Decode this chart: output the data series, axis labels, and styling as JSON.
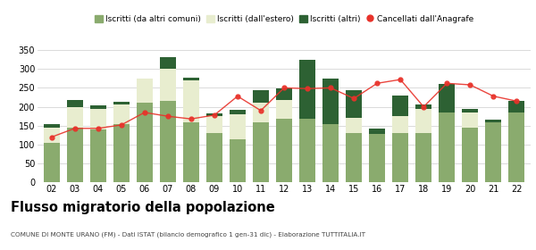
{
  "years": [
    "02",
    "03",
    "04",
    "05",
    "06",
    "07",
    "08",
    "09",
    "10",
    "11",
    "12",
    "13",
    "14",
    "15",
    "16",
    "17",
    "18",
    "19",
    "20",
    "21",
    "22"
  ],
  "iscritti_comuni": [
    105,
    145,
    140,
    155,
    210,
    215,
    160,
    130,
    115,
    160,
    168,
    168,
    155,
    130,
    128,
    130,
    130,
    185,
    145,
    158,
    185
  ],
  "iscritti_estero": [
    40,
    55,
    55,
    50,
    65,
    85,
    110,
    45,
    65,
    50,
    50,
    0,
    0,
    40,
    0,
    45,
    65,
    0,
    40,
    0,
    0
  ],
  "iscritti_altri": [
    10,
    18,
    8,
    8,
    0,
    30,
    8,
    8,
    12,
    35,
    30,
    155,
    120,
    75,
    15,
    55,
    10,
    75,
    10,
    8,
    30
  ],
  "cancellati": [
    120,
    143,
    143,
    152,
    185,
    175,
    168,
    178,
    228,
    190,
    250,
    248,
    250,
    222,
    262,
    272,
    200,
    262,
    258,
    228,
    215
  ],
  "color_comuni": "#8aab6e",
  "color_estero": "#e8edcf",
  "color_altri": "#2d6133",
  "color_cancellati": "#e8322a",
  "legend_labels": [
    "Iscritti (da altri comuni)",
    "Iscritti (dall'estero)",
    "Iscritti (altri)",
    "Cancellati dall'Anagrafe"
  ],
  "title": "Flusso migratorio della popolazione",
  "subtitle": "COMUNE DI MONTE URANO (FM) - Dati ISTAT (bilancio demografico 1 gen-31 dic) - Elaborazione TUTTITALIA.IT",
  "ylabel_max": 350,
  "yticks": [
    0,
    50,
    100,
    150,
    200,
    250,
    300,
    350
  ],
  "bg_color": "#ffffff",
  "grid_color": "#cccccc"
}
